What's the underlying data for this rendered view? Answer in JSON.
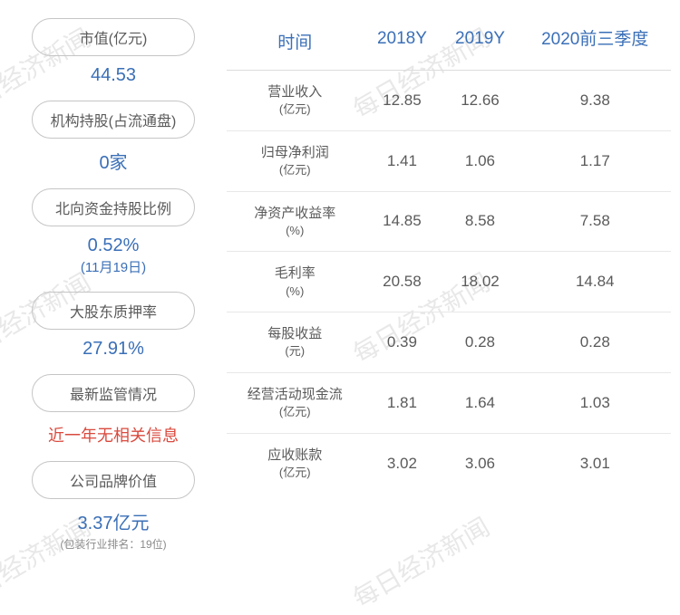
{
  "watermark_text": "每日经济新闻",
  "watermark_color": "#e8e8e8",
  "left": {
    "items": [
      {
        "label": "市值(亿元)",
        "value": "44.53",
        "sub": ""
      },
      {
        "label": "机构持股(占流通盘)",
        "value": "0家",
        "sub": ""
      },
      {
        "label": "北向资金持股比例",
        "value": "0.52%",
        "sub": "(11月19日)"
      },
      {
        "label": "大股东质押率",
        "value": "27.91%",
        "sub": ""
      },
      {
        "label": "最新监管情况",
        "value_red": "近一年无相关信息",
        "sub": ""
      },
      {
        "label": "公司品牌价值",
        "value": "3.37亿元",
        "note": "(包装行业排名：19位)"
      }
    ]
  },
  "table": {
    "columns": [
      "时间",
      "2018Y",
      "2019Y",
      "2020前三季度"
    ],
    "rows": [
      {
        "metric": "营业收入",
        "unit": "(亿元)",
        "v": [
          "12.85",
          "12.66",
          "9.38"
        ]
      },
      {
        "metric": "归母净利润",
        "unit": "(亿元)",
        "v": [
          "1.41",
          "1.06",
          "1.17"
        ]
      },
      {
        "metric": "净资产收益率",
        "unit": "(%)",
        "v": [
          "14.85",
          "8.58",
          "7.58"
        ]
      },
      {
        "metric": "毛利率",
        "unit": "(%)",
        "v": [
          "20.58",
          "18.02",
          "14.84"
        ]
      },
      {
        "metric": "每股收益",
        "unit": "(元)",
        "v": [
          "0.39",
          "0.28",
          "0.28"
        ]
      },
      {
        "metric": "经营活动现金流",
        "unit": "(亿元)",
        "v": [
          "1.81",
          "1.64",
          "1.03"
        ]
      },
      {
        "metric": "应收账款",
        "unit": "(亿元)",
        "v": [
          "3.02",
          "3.06",
          "3.01"
        ]
      }
    ],
    "header_color": "#3a6fb7",
    "cell_color": "#5a5a5a",
    "border_color": "#dcdcdc"
  },
  "colors": {
    "pill_border": "#c5c5c5",
    "pill_text": "#5a5a5a",
    "value_blue": "#3a6fb7",
    "value_red": "#d94a3e",
    "note_gray": "#8a8a8a",
    "background": "#ffffff"
  }
}
